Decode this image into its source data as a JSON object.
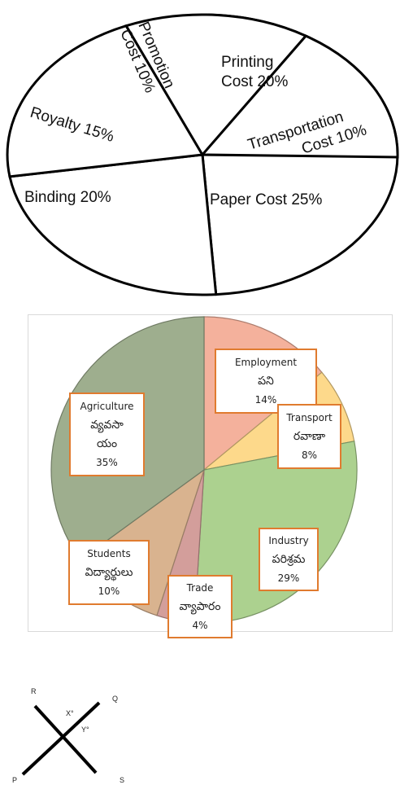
{
  "chart_data": [
    {
      "type": "pie",
      "categories": [
        "Printing Cost",
        "Transportation Cost",
        "Paper Cost",
        "Binding",
        "Royalty",
        "Promotion Cost"
      ],
      "values": [
        20,
        10,
        25,
        20,
        15,
        10
      ],
      "labels": [
        {
          "lines": [
            "Printing",
            "Cost 20%"
          ]
        },
        {
          "lines": [
            "Transportation",
            "Cost 10%"
          ]
        },
        {
          "lines": [
            "Paper  Cost 25%"
          ]
        },
        {
          "lines": [
            "Binding 20%"
          ]
        },
        {
          "lines": [
            "Royalty 15%"
          ]
        },
        {
          "lines": [
            "Promotion",
            "Cost 10%"
          ]
        }
      ]
    },
    {
      "type": "pie",
      "categories": [
        "Employment",
        "Transport",
        "Industry",
        "Trade",
        "Students",
        "Agriculture"
      ],
      "values": [
        14,
        8,
        29,
        4,
        10,
        35
      ],
      "colors": [
        "#f4b19c",
        "#fdd98b",
        "#acd18f",
        "#d39e9b",
        "#d9b38f",
        "#9eae8e"
      ],
      "labels": [
        {
          "lines": [
            "Employment",
            "పని",
            "14%"
          ]
        },
        {
          "lines": [
            "Transport",
            "రవాణా",
            "8%"
          ]
        },
        {
          "lines": [
            "Industry",
            "పరిశ్రమ",
            "29%"
          ]
        },
        {
          "lines": [
            "Trade",
            "వ్యాపారం",
            "4%"
          ]
        },
        {
          "lines": [
            "Students",
            "విద్యార్థులు",
            "10%"
          ]
        },
        {
          "lines": [
            "Agriculture",
            "వ్యవసా",
            "యం",
            "35%"
          ]
        }
      ],
      "label_border_color": "#e07b2f"
    }
  ],
  "figure": {
    "points": [
      "R",
      "Q",
      "P",
      "S"
    ],
    "angles": [
      "X°",
      "Y°"
    ]
  }
}
